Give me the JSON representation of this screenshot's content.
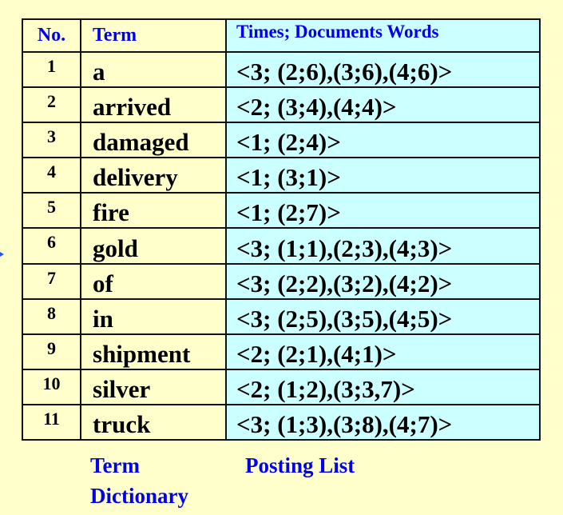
{
  "table": {
    "headers": {
      "no": "No.",
      "term": "Term",
      "posting": "Times; Documents Words"
    },
    "rows": [
      {
        "no": "1",
        "term": "a",
        "posting": "<3; (2;6),(3;6),(4;6)>"
      },
      {
        "no": "2",
        "term": "arrived",
        "posting": "<2; (3;4),(4;4)>"
      },
      {
        "no": "3",
        "term": "damaged",
        "posting": "<1; (2;4)>"
      },
      {
        "no": "4",
        "term": "delivery",
        "posting": "<1; (3;1)>"
      },
      {
        "no": "5",
        "term": "fire",
        "posting": "<1; (2;7)>"
      },
      {
        "no": "6",
        "term": "gold",
        "posting": "<3; (1;1),(2;3),(4;3)>"
      },
      {
        "no": "7",
        "term": "of",
        "posting": "<3; (2;2),(3;2),(4;2)>"
      },
      {
        "no": "8",
        "term": "in",
        "posting": "<3; (2;5),(3;5),(4;5)>"
      },
      {
        "no": "9",
        "term": "shipment",
        "posting": "<2; (2;1),(4;1)>"
      },
      {
        "no": "10",
        "term": "silver",
        "posting": "<2; (1;2),(3;3,7)>"
      },
      {
        "no": "11",
        "term": "truck",
        "posting": "<3; (1;3),(3;8),(4;7)>"
      }
    ]
  },
  "captions": {
    "term_line1": "Term",
    "term_line2": "Dictionary",
    "posting": "Posting List"
  },
  "colors": {
    "background": "#FFFFCC",
    "posting_bg": "#CCFFFF",
    "header_text": "#0000EE"
  },
  "icons": {
    "left_edge": "arrow-right-icon"
  }
}
